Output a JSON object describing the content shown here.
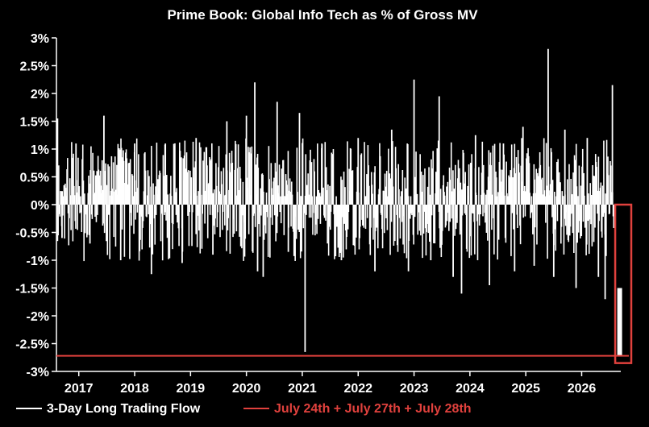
{
  "chart_data": {
    "type": "bar",
    "title": "Prime Book: Global Info Tech as % of Gross MV",
    "xlabel": "",
    "ylabel": "",
    "x_range": [
      2016.6,
      2026.7
    ],
    "ylim": [
      -3,
      3
    ],
    "y_ticks": [
      3,
      2.5,
      2,
      1.5,
      1,
      0.5,
      0,
      -0.5,
      -1,
      -1.5,
      -2,
      -2.5,
      -3
    ],
    "y_tick_labels": [
      "3%",
      "2.5%",
      "2%",
      "1.5%",
      "1%",
      "0.5%",
      "0%",
      "-0.5%",
      "-1%",
      "-1.5%",
      "-2%",
      "-2.5%",
      "-3%"
    ],
    "x_ticks": [
      2017,
      2018,
      2019,
      2020,
      2021,
      2022,
      2023,
      2024,
      2025,
      2026
    ],
    "x_tick_labels": [
      "2017",
      "2018",
      "2019",
      "2020",
      "2021",
      "2022",
      "2023",
      "2024",
      "2025",
      "2026"
    ],
    "grid": false,
    "legend_position": "bottom",
    "series": [
      {
        "name": "3-Day Long Trading Flow",
        "color": "#ffffff",
        "sampled_points": [
          {
            "x": 2016.62,
            "y": 1.55
          },
          {
            "x": 2016.7,
            "y": -0.6
          },
          {
            "x": 2016.95,
            "y": 1.1
          },
          {
            "x": 2017.2,
            "y": -0.7
          },
          {
            "x": 2017.45,
            "y": 1.6
          },
          {
            "x": 2017.75,
            "y": -1.0
          },
          {
            "x": 2018.0,
            "y": 1.1
          },
          {
            "x": 2018.3,
            "y": -1.25
          },
          {
            "x": 2018.55,
            "y": 1.1
          },
          {
            "x": 2018.85,
            "y": -1.05
          },
          {
            "x": 2019.1,
            "y": 1.2
          },
          {
            "x": 2019.4,
            "y": -0.9
          },
          {
            "x": 2019.65,
            "y": 1.5
          },
          {
            "x": 2019.9,
            "y": -0.75
          },
          {
            "x": 2020.0,
            "y": 1.6
          },
          {
            "x": 2020.15,
            "y": 2.2
          },
          {
            "x": 2020.2,
            "y": -1.2
          },
          {
            "x": 2020.3,
            "y": -1.3
          },
          {
            "x": 2020.55,
            "y": 1.85
          },
          {
            "x": 2020.75,
            "y": -0.85
          },
          {
            "x": 2020.95,
            "y": 1.65
          },
          {
            "x": 2021.05,
            "y": -2.65
          },
          {
            "x": 2021.35,
            "y": 1.1
          },
          {
            "x": 2021.7,
            "y": -1.0
          },
          {
            "x": 2022.0,
            "y": 1.2
          },
          {
            "x": 2022.3,
            "y": -1.2
          },
          {
            "x": 2022.6,
            "y": 1.35
          },
          {
            "x": 2022.9,
            "y": -1.2
          },
          {
            "x": 2023.0,
            "y": 2.25
          },
          {
            "x": 2023.3,
            "y": -1.0
          },
          {
            "x": 2023.45,
            "y": 1.95
          },
          {
            "x": 2023.7,
            "y": -1.3
          },
          {
            "x": 2023.85,
            "y": -1.6
          },
          {
            "x": 2024.1,
            "y": 1.25
          },
          {
            "x": 2024.35,
            "y": -1.45
          },
          {
            "x": 2024.6,
            "y": 1.1
          },
          {
            "x": 2024.8,
            "y": -1.2
          },
          {
            "x": 2024.95,
            "y": 1.4
          },
          {
            "x": 2025.15,
            "y": -1.1
          },
          {
            "x": 2025.4,
            "y": 2.8
          },
          {
            "x": 2025.5,
            "y": -1.3
          },
          {
            "x": 2025.7,
            "y": 1.35
          },
          {
            "x": 2025.9,
            "y": -1.5
          },
          {
            "x": 2026.1,
            "y": 1.2
          },
          {
            "x": 2026.3,
            "y": -1.3
          },
          {
            "x": 2026.42,
            "y": -1.7
          },
          {
            "x": 2026.55,
            "y": 2.15
          }
        ]
      },
      {
        "name": "July 24th + July 27th + July 28th",
        "color": "#e0413d",
        "type": "hline",
        "y": -2.72
      }
    ],
    "highlight_box": {
      "color": "#e0413d",
      "x_range": [
        2026.6,
        2026.9
      ],
      "y_range": [
        -2.85,
        0.0
      ],
      "contained_bar": {
        "x": 2026.68,
        "y_min": -2.72,
        "y_max": -1.5
      }
    }
  }
}
